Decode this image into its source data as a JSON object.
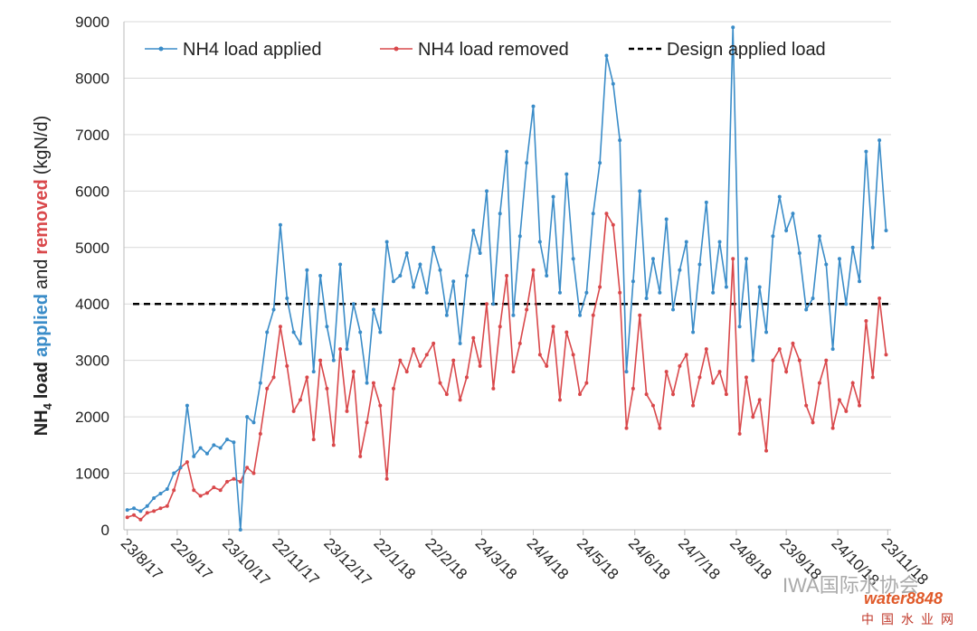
{
  "chart_data": {
    "type": "line",
    "y_label_parts": [
      "NH",
      "4",
      "load",
      "applied",
      "and",
      "removed",
      "(kgN/d)"
    ],
    "x": [
      "23/8/17",
      "27/8/17",
      "31/8/17",
      "4/9/17",
      "8/9/17",
      "12/9/17",
      "16/9/17",
      "20/9/17",
      "24/9/17",
      "28/9/17",
      "2/10/17",
      "6/10/17",
      "10/10/17",
      "14/10/17",
      "18/10/17",
      "22/10/17",
      "26/10/17",
      "30/10/17",
      "3/11/17",
      "7/11/17",
      "11/11/17",
      "15/11/17",
      "19/11/17",
      "23/11/17",
      "27/11/17",
      "1/12/17",
      "5/12/17",
      "9/12/17",
      "13/12/17",
      "17/12/17",
      "21/12/17",
      "25/12/17",
      "29/12/17",
      "2/1/18",
      "6/1/18",
      "10/1/18",
      "14/1/18",
      "18/1/18",
      "22/1/18",
      "26/1/18",
      "30/1/18",
      "3/2/18",
      "7/2/18",
      "11/2/18",
      "15/2/18",
      "19/2/18",
      "23/2/18",
      "27/2/18",
      "3/3/18",
      "7/3/18",
      "11/3/18",
      "15/3/18",
      "19/3/18",
      "23/3/18",
      "27/3/18",
      "31/3/18",
      "4/4/18",
      "8/4/18",
      "12/4/18",
      "16/4/18",
      "20/4/18",
      "24/4/18",
      "28/4/18",
      "2/5/18",
      "6/5/18",
      "10/5/18",
      "14/5/18",
      "18/5/18",
      "22/5/18",
      "26/5/18",
      "30/5/18",
      "3/6/18",
      "7/6/18",
      "11/6/18",
      "15/6/18",
      "19/6/18",
      "23/6/18",
      "27/6/18",
      "1/7/18",
      "5/7/18",
      "9/7/18",
      "13/7/18",
      "17/7/18",
      "21/7/18",
      "25/7/18",
      "29/7/18",
      "2/8/18",
      "6/8/18",
      "10/8/18",
      "14/8/18",
      "18/8/18",
      "22/8/18",
      "26/8/18",
      "30/8/18",
      "3/9/18",
      "7/9/18",
      "11/9/18",
      "15/9/18",
      "19/9/18",
      "23/9/18",
      "27/9/18",
      "1/10/18",
      "5/10/18",
      "9/10/18",
      "13/10/18",
      "17/10/18",
      "21/10/18",
      "25/10/18",
      "29/10/18",
      "2/11/18",
      "6/11/18",
      "10/11/18",
      "14/11/18",
      "18/11/18",
      "22/11/18"
    ],
    "series": [
      {
        "name": "NH4 load applied",
        "color": "#3a8cc8",
        "values": [
          350,
          380,
          330,
          420,
          560,
          640,
          720,
          1000,
          1100,
          2200,
          1300,
          1450,
          1350,
          1500,
          1450,
          1600,
          1550,
          0,
          2000,
          1900,
          2600,
          3500,
          3900,
          5400,
          4100,
          3500,
          3300,
          4600,
          2800,
          4500,
          3600,
          3000,
          4700,
          3200,
          4000,
          3500,
          2600,
          3900,
          3500,
          5100,
          4400,
          4500,
          4900,
          4300,
          4700,
          4200,
          5000,
          4600,
          3800,
          4400,
          3300,
          4500,
          5300,
          4900,
          6000,
          4000,
          5600,
          6700,
          3800,
          5200,
          6500,
          7500,
          5100,
          4500,
          5900,
          4200,
          6300,
          4800,
          3800,
          4200,
          5600,
          6500,
          8400,
          7900,
          6900,
          2800,
          4400,
          6000,
          4100,
          4800,
          4200,
          5500,
          3900,
          4600,
          5100,
          3500,
          4700,
          5800,
          4200,
          5100,
          4300,
          8900,
          3600,
          4800,
          3000,
          4300,
          3500,
          5200,
          5900,
          5300,
          5600,
          4900,
          3900,
          4100,
          5200,
          4700,
          3200,
          4800,
          4000,
          5000,
          4400,
          6700,
          5000,
          6900,
          5300
        ]
      },
      {
        "name": "NH4 load removed",
        "color": "#d9484b",
        "values": [
          220,
          260,
          180,
          300,
          330,
          380,
          420,
          700,
          1100,
          1200,
          700,
          600,
          650,
          750,
          700,
          850,
          900,
          850,
          1100,
          1000,
          1700,
          2500,
          2700,
          3600,
          2900,
          2100,
          2300,
          2700,
          1600,
          3000,
          2500,
          1500,
          3200,
          2100,
          2800,
          1300,
          1900,
          2600,
          2200,
          900,
          2500,
          3000,
          2800,
          3200,
          2900,
          3100,
          3300,
          2600,
          2400,
          3000,
          2300,
          2700,
          3400,
          2900,
          4000,
          2500,
          3600,
          4500,
          2800,
          3300,
          3900,
          4600,
          3100,
          2900,
          3600,
          2300,
          3500,
          3100,
          2400,
          2600,
          3800,
          4300,
          5600,
          5400,
          4200,
          1800,
          2500,
          3800,
          2400,
          2200,
          1800,
          2800,
          2400,
          2900,
          3100,
          2200,
          2700,
          3200,
          2600,
          2800,
          2400,
          4800,
          1700,
          2700,
          2000,
          2300,
          1400,
          3000,
          3200,
          2800,
          3300,
          3000,
          2200,
          1900,
          2600,
          3000,
          1800,
          2300,
          2100,
          2600,
          2200,
          3700,
          2700,
          4100,
          3100
        ]
      }
    ],
    "reference_line": {
      "name": "Design applied load",
      "value": 4000,
      "color": "#000000"
    },
    "xlim": [
      "21/8/17",
      "25/11/18"
    ],
    "xticks": [
      "23/8/17",
      "22/9/17",
      "23/10/17",
      "22/11/17",
      "23/12/17",
      "22/1/18",
      "22/2/18",
      "24/3/18",
      "24/4/18",
      "24/5/18",
      "24/6/18",
      "24/7/18",
      "24/8/18",
      "23/9/18",
      "24/10/18",
      "23/11/18"
    ],
    "ylim": [
      0,
      9000
    ],
    "yticks": [
      0,
      1000,
      2000,
      3000,
      4000,
      5000,
      6000,
      7000,
      8000,
      9000
    ],
    "grid": true,
    "legend": "top",
    "watermark": [
      "IWA国际水协会",
      "water8848",
      "中国水业网"
    ]
  }
}
